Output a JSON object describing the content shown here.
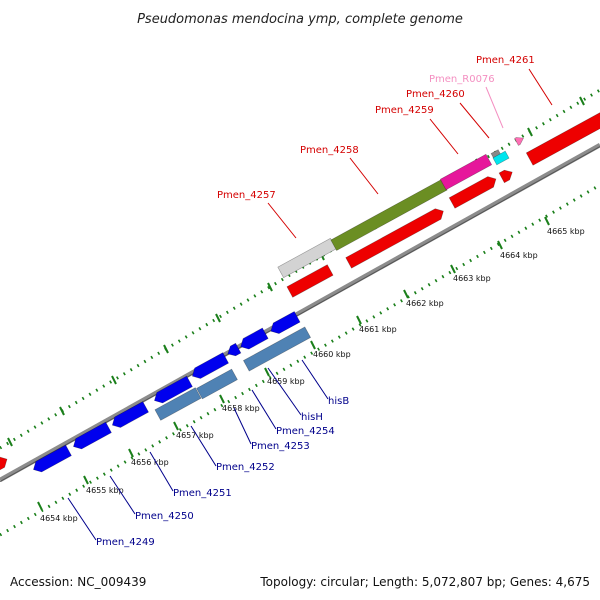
{
  "title": "Pseudomonas mendocina ymp, complete genome",
  "footer": {
    "accession": "Accession: NC_009439",
    "summary": "Topology: circular; Length: 5,072,807 bp; Genes: 4,675"
  },
  "ticks": [
    {
      "label": "4654 kbp"
    },
    {
      "label": "4655 kbp"
    },
    {
      "label": "4656 kbp"
    },
    {
      "label": "4657 kbp"
    },
    {
      "label": "4658 kbp"
    },
    {
      "label": "4659 kbp"
    },
    {
      "label": "4660 kbp"
    },
    {
      "label": "4661 kbp"
    },
    {
      "label": "4662 kbp"
    },
    {
      "label": "4663 kbp"
    },
    {
      "label": "4664 kbp"
    },
    {
      "label": "4665 kbp"
    }
  ],
  "gene_labels": {
    "forward": [
      {
        "name": "Pmen_4257",
        "color": "#d40000"
      },
      {
        "name": "Pmen_4258",
        "color": "#d40000"
      },
      {
        "name": "Pmen_4259",
        "color": "#d40000"
      },
      {
        "name": "Pmen_4260",
        "color": "#d40000"
      },
      {
        "name": "Pmen_R0076",
        "color": "#f48fc1"
      },
      {
        "name": "Pmen_4261",
        "color": "#d40000"
      }
    ],
    "reverse": [
      {
        "name": "Pmen_4249",
        "color": "#00008b"
      },
      {
        "name": "Pmen_4250",
        "color": "#00008b"
      },
      {
        "name": "Pmen_4251",
        "color": "#00008b"
      },
      {
        "name": "Pmen_4252",
        "color": "#00008b"
      },
      {
        "name": "Pmen_4253",
        "color": "#00008b"
      },
      {
        "name": "Pmen_4254",
        "color": "#00008b"
      },
      {
        "name": "hisH",
        "color": "#00008b"
      },
      {
        "name": "hisB",
        "color": "#00008b"
      }
    ]
  },
  "colors": {
    "backbone": "#8c8c8c",
    "tick": "#1a7f1a",
    "cds_forward": "#ee0000",
    "cds_reverse": "#0000ee",
    "gene_track": "#4f82b4",
    "trna": "#00e5ee",
    "rrna": "#888888",
    "ncrna": "#ff6fb5",
    "olive": "#6b8e23",
    "magenta": "#e6179b",
    "misc": "#d3d3d3"
  }
}
